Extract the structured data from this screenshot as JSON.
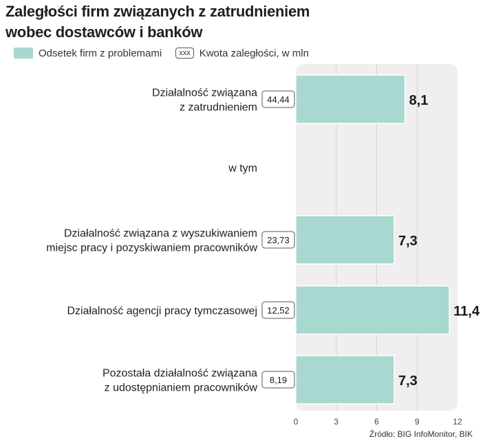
{
  "title_line1": "Zaległości firm związanych z zatrudnieniem",
  "title_line2": "wobec dostawców i banków",
  "legend": {
    "series_label": "Odsetek firm z problemami",
    "amount_key": "xxx",
    "amount_label": "Kwota zaległości, w mln"
  },
  "source": "Źródło: BIG InfoMonitor, BIK",
  "chart_data": {
    "type": "bar",
    "orientation": "horizontal",
    "series_name": "Odsetek firm z problemami",
    "categories": [
      [
        "Działalność związana",
        "z zatrudnieniem"
      ],
      [
        "Działalność związana z wyszukiwaniem",
        "miejsc pracy i pozyskiwaniem pracowników"
      ],
      [
        "Działalność agencji pracy tymczasowej"
      ],
      [
        "Pozostała działalność związana",
        "z udostępnianiem pracowników"
      ]
    ],
    "values": [
      8.1,
      7.3,
      11.4,
      7.3
    ],
    "value_labels": [
      "8,1",
      "7,3",
      "11,4",
      "7,3"
    ],
    "amounts": [
      "44,44",
      "23,73",
      "12,52",
      "8,19"
    ],
    "group_label": "w tym",
    "xlim": [
      0,
      12
    ],
    "xticks": [
      0,
      3,
      6,
      9,
      12
    ],
    "grid": true
  }
}
